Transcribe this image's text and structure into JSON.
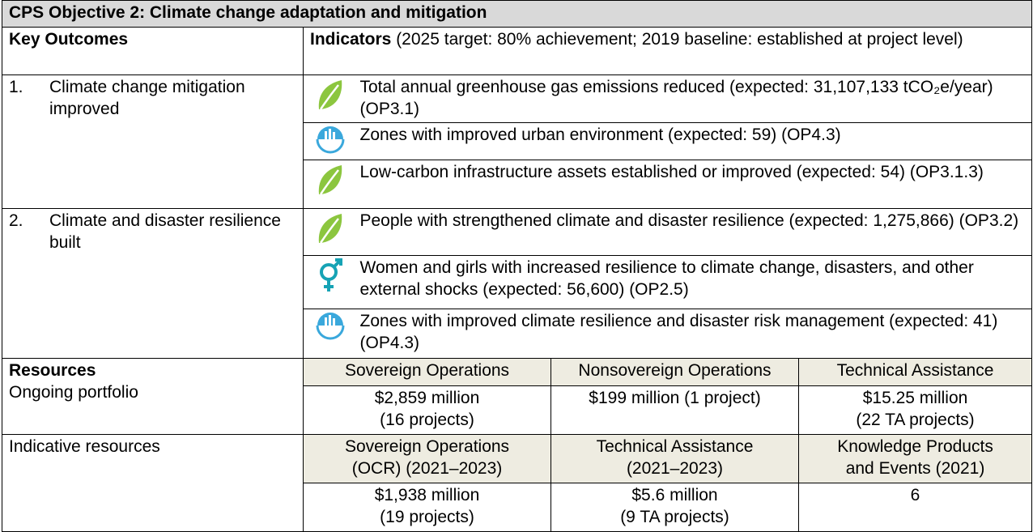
{
  "title": "CPS Objective 2: Climate change adaptation and mitigation",
  "header": {
    "key_outcomes": "Key Outcomes",
    "indicators_label": "Indicators",
    "indicators_note": " (2025 target: 80% achievement; 2019 baseline: established at project level)"
  },
  "outcomes": [
    {
      "number": "1.",
      "label": "Climate change mitigation improved",
      "indicators": [
        "Total annual greenhouse gas emissions reduced (expected: 31,107,133 tCO₂e/year) (OP3.1)",
        "Zones with improved urban environment (expected: 59) (OP4.3)",
        "Low-carbon infrastructure assets established or improved (expected: 54) (OP3.1.3)"
      ]
    },
    {
      "number": "2.",
      "label": "Climate and disaster resilience built",
      "indicators": [
        "People with strengthened climate and disaster resilience (expected: 1,275,866) (OP3.2)",
        "Women and girls with increased resilience to climate change, disasters, and other external shocks (expected: 56,600) (OP2.5)",
        "Zones with improved climate resilience and disaster risk management (expected: 41) (OP4.3)"
      ]
    }
  ],
  "resources": {
    "label": "Resources",
    "headers": [
      "Sovereign Operations",
      "Nonsovereign Operations",
      "Technical Assistance"
    ],
    "ongoing": {
      "label": "Ongoing portfolio",
      "cells": [
        [
          "$2,859 million",
          "(16 projects)"
        ],
        [
          "$199 million (1 project)"
        ],
        [
          "$15.25 million",
          "(22 TA projects)"
        ]
      ]
    },
    "indicative": {
      "label": "Indicative resources",
      "headers": [
        [
          "Sovereign Operations",
          "(OCR) (2021–2023)"
        ],
        [
          "Technical Assistance",
          "(2021–2023)"
        ],
        [
          "Knowledge Products",
          "and Events (2021)"
        ]
      ],
      "cells": [
        [
          "$1,938 million",
          "(19 projects)"
        ],
        [
          "$5.6 million",
          "(9 TA projects)"
        ],
        [
          "6"
        ]
      ]
    }
  }
}
